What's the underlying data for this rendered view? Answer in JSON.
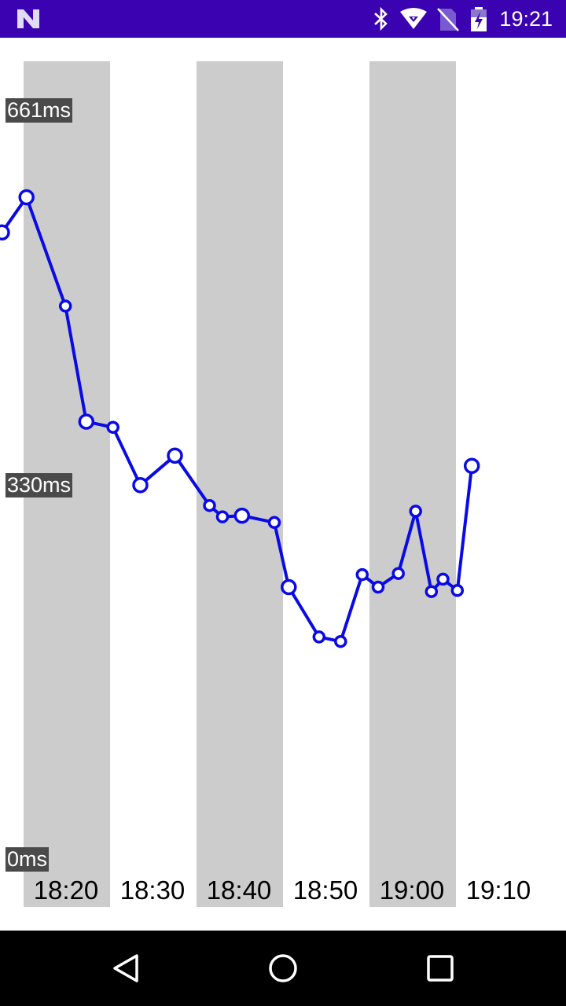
{
  "status_bar": {
    "time": "19:21",
    "background": "#3a02b0",
    "icons": [
      "n-logo-icon",
      "bluetooth-icon",
      "wifi-icon",
      "no-sim-icon",
      "battery-charging-icon"
    ]
  },
  "nav_bar": {
    "icons": [
      "back-icon",
      "home-icon",
      "recents-icon"
    ]
  },
  "chart_data": {
    "type": "line",
    "title": "",
    "xlabel": "",
    "ylabel": "",
    "y_unit": "ms",
    "ylim": [
      0,
      661
    ],
    "y_ticks": [
      {
        "value": 661,
        "label": "661ms"
      },
      {
        "value": 330,
        "label": "330ms"
      },
      {
        "value": 0,
        "label": "0ms"
      }
    ],
    "x_ticks": [
      "18:20",
      "18:30",
      "18:40",
      "18:50",
      "19:00",
      "19:10"
    ],
    "xlim": [
      "18:16",
      "19:21"
    ],
    "line_color": "#0a0ae6",
    "band_color": "#cccccc",
    "shaded_bands": [
      "18:20",
      "18:40",
      "19:00"
    ],
    "grid": false,
    "legend": "none",
    "series": [
      {
        "x": [
          "18:17:30",
          "18:20:20",
          "18:24:50",
          "18:27:15",
          "18:30:20",
          "18:33:30",
          "18:37:30",
          "18:41:30",
          "18:43:00",
          "18:45:15",
          "18:49:00",
          "18:50:40",
          "18:54:10",
          "18:56:40",
          "18:59:10",
          "19:01:00",
          "19:03:20",
          "19:05:20",
          "19:07:10",
          "19:08:30",
          "19:10:10",
          "19:11:50"
        ],
        "values": [
          553,
          584,
          488,
          386,
          381,
          330,
          356,
          312,
          302,
          303,
          297,
          240,
          196,
          192,
          251,
          240,
          252,
          307,
          236,
          247,
          237,
          347
        ],
        "marker_sizes": [
          "large",
          "large",
          "small",
          "large",
          "small",
          "large",
          "large",
          "small",
          "small",
          "large",
          "small",
          "large",
          "small",
          "small",
          "small",
          "small",
          "small",
          "small",
          "small",
          "small",
          "small",
          "large"
        ]
      }
    ]
  }
}
